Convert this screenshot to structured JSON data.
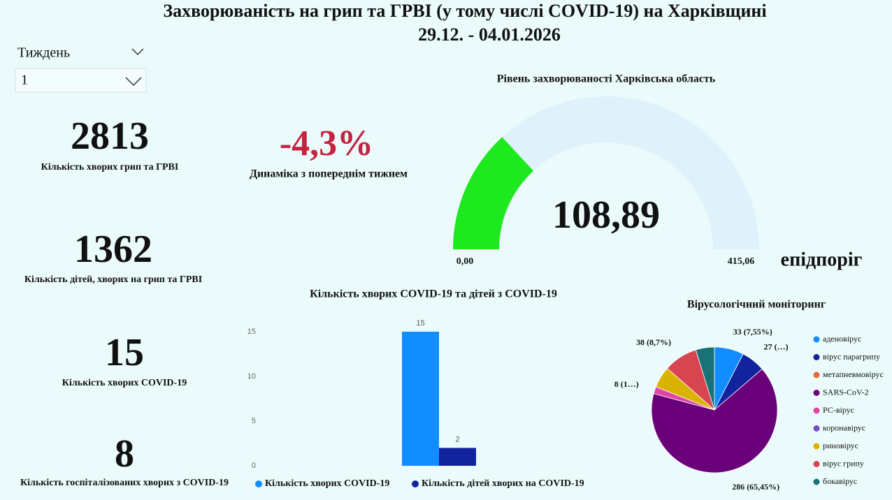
{
  "header": {
    "title": "Захворюваність на грип та ГРВІ (у тому числі COVID-19) на Харківщині",
    "subtitle": "29.12. - 04.01.2026"
  },
  "slicer": {
    "label": "Тиждень",
    "value": "1"
  },
  "kpis": [
    {
      "value": 2813,
      "label": "Кількість хворих грип та ГРВІ"
    },
    {
      "value": 1362,
      "label": "Кількість дітей, хворих на грип та ГРВІ"
    },
    {
      "value": 15,
      "label": "Кількість хворих COVID-19"
    },
    {
      "value": 8,
      "label": "Кількість госпіталізованих хворих з COVID-19"
    }
  ],
  "dynamics": {
    "value": "-4,3%",
    "label": "Динаміка з попереднім тижнем"
  },
  "chart_data": [
    {
      "type": "gauge",
      "title": "Рівень захворюваності Харківська область",
      "value": 108.89,
      "value_label": "108,89",
      "range": [
        {
          "value": 0,
          "label": "0,00"
        },
        {
          "value": 415.06,
          "label": "415,06"
        }
      ],
      "annotation": "епідпоріг",
      "color": "#1ee81e",
      "track_color": "#dff1fb"
    },
    {
      "type": "bar",
      "title": "Кількість хворих COVID-19 та дітей з COVID-19",
      "categories": [
        null
      ],
      "series": [
        {
          "name": "Кількість хворих COVID-19",
          "color": "#118dff",
          "values": [
            15
          ]
        },
        {
          "name": "Кількість дітей хворих на COVID-19",
          "color": "#12239e",
          "values": [
            2
          ]
        }
      ],
      "ylim": [
        0,
        15
      ],
      "yticks": [
        0,
        5,
        10,
        15
      ]
    },
    {
      "type": "pie",
      "title": "Вірусологічний моніторинг",
      "categories": [
        "аденовірус",
        "вірус парагрипу",
        "метапневмовірус",
        "SARS-CoV-2",
        "РС-вірус",
        "коронавірус",
        "риновірус",
        "вірус грипу",
        "бокавірус"
      ],
      "values": [
        33,
        27,
        0,
        286,
        8,
        0,
        24,
        38,
        21
      ],
      "value_labels": [
        "33 (7,55%)",
        "27 (…)",
        null,
        "286 (65,45%)",
        "8 (1…)",
        null,
        null,
        "38 (8,7%)",
        null
      ],
      "colors": [
        "#118dff",
        "#12239e",
        "#e66c37",
        "#6b007b",
        "#e044a7",
        "#744ec2",
        "#d9b300",
        "#d64550",
        "#197278"
      ]
    }
  ]
}
